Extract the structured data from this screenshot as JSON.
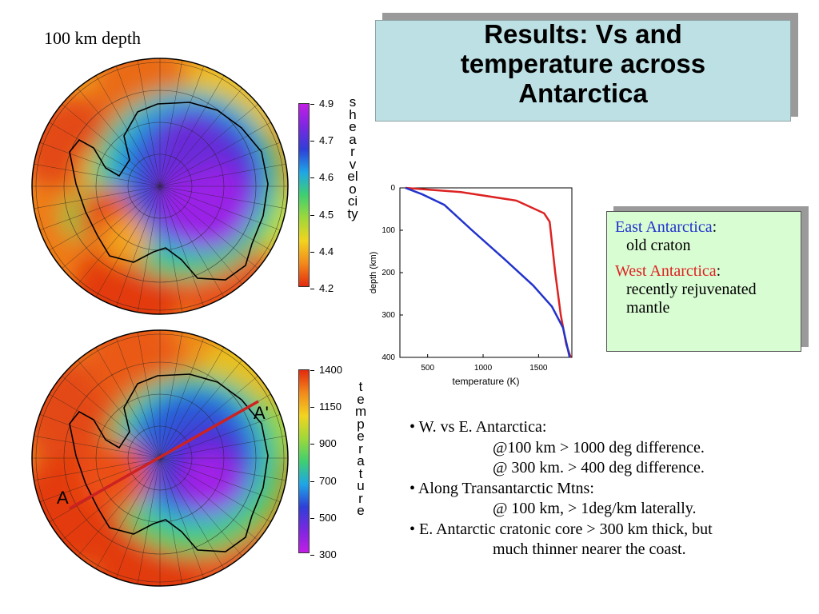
{
  "depth_label": "100 km depth",
  "title": {
    "line1": "Results: Vs and",
    "line2": "temperature across",
    "line3": "Antarctica"
  },
  "shear_colorbar": {
    "ticks": [
      "4.9",
      "4.7",
      "4.6",
      "4.5",
      "4.4",
      "4.2"
    ],
    "label": "shear velocity"
  },
  "temp_colorbar": {
    "ticks": [
      "1400",
      "1150",
      "900",
      "700",
      "500",
      "300"
    ],
    "label": "temperature"
  },
  "profile_labels": {
    "start": "A",
    "end": "A'"
  },
  "colors": {
    "east": "#2233cc",
    "west": "#dd2222",
    "profile_line": "#cc2222"
  },
  "chart_data": {
    "type": "line",
    "xlabel": "temperature (K)",
    "ylabel": "depth (km)",
    "xlim": [
      250,
      1800
    ],
    "ylim": [
      400,
      0
    ],
    "x_ticks": [
      "500",
      "1000",
      "1500"
    ],
    "y_ticks": [
      "0",
      "100",
      "200",
      "300",
      "400"
    ],
    "series": [
      {
        "color": "#dd2222",
        "x": [
          300,
          800,
          1300,
          1550,
          1600,
          1650,
          1700,
          1750,
          1790
        ],
        "y": [
          0,
          10,
          30,
          60,
          80,
          200,
          300,
          370,
          400
        ]
      },
      {
        "color": "#2233cc",
        "x": [
          300,
          450,
          650,
          900,
          1200,
          1450,
          1620,
          1720,
          1780
        ],
        "y": [
          0,
          15,
          40,
          100,
          170,
          230,
          280,
          330,
          400
        ]
      }
    ]
  },
  "legend": {
    "east_name": "East Antarctica",
    "east_colon": ":",
    "east_desc": "old craton",
    "west_name": "West Antarctica",
    "west_colon": ":",
    "west_desc1": "recently rejuvenated",
    "west_desc2": "mantle"
  },
  "bullets": [
    "• W. vs E. Antarctica:",
    "@100 km > 1000 deg difference.",
    "@ 300 km. > 400 deg difference.",
    "• Along Transantarctic Mtns:",
    "@ 100 km, > 1deg/km laterally.",
    "• E. Antarctic cratonic core > 300 km thick, but",
    "much thinner nearer the coast."
  ]
}
